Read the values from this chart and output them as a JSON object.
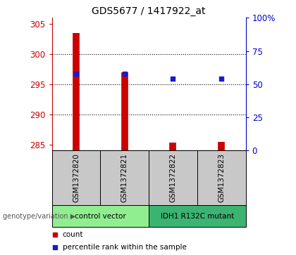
{
  "title": "GDS5677 / 1417922_at",
  "samples": [
    "GSM1372820",
    "GSM1372821",
    "GSM1372822",
    "GSM1372823"
  ],
  "count_values": [
    303.5,
    297.0,
    285.3,
    285.4
  ],
  "percentile_values": [
    58,
    58,
    54,
    54
  ],
  "ylim_left": [
    284,
    306
  ],
  "ylim_right": [
    0,
    100
  ],
  "yticks_left": [
    285,
    290,
    295,
    300,
    305
  ],
  "yticks_right": [
    0,
    25,
    50,
    75,
    100
  ],
  "yticklabels_right": [
    "0",
    "25",
    "50",
    "75",
    "100%"
  ],
  "groups": [
    {
      "label": "control vector",
      "color": "#90EE90",
      "samples": [
        0,
        1
      ]
    },
    {
      "label": "IDH1 R132C mutant",
      "color": "#3CB371",
      "samples": [
        2,
        3
      ]
    }
  ],
  "bar_color": "#CC0000",
  "point_color": "#1A1ACC",
  "sample_bg_color": "#C8C8C8",
  "legend_items": [
    {
      "label": "count",
      "color": "#CC0000"
    },
    {
      "label": "percentile rank within the sample",
      "color": "#1A1ACC"
    }
  ],
  "group_label_text": "genotype/variation",
  "left_axis_color": "#CC0000",
  "right_axis_color": "#0000CC",
  "grid_ticks": [
    290,
    295,
    300
  ]
}
